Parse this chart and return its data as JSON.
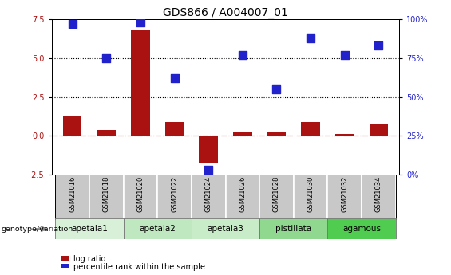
{
  "title": "GDS866 / A004007_01",
  "samples": [
    "GSM21016",
    "GSM21018",
    "GSM21020",
    "GSM21022",
    "GSM21024",
    "GSM21026",
    "GSM21028",
    "GSM21030",
    "GSM21032",
    "GSM21034"
  ],
  "log_ratio": [
    1.3,
    0.4,
    6.8,
    0.9,
    -1.8,
    0.2,
    0.2,
    0.9,
    0.1,
    0.8
  ],
  "percentile_rank": [
    97,
    75,
    98,
    62,
    3,
    77,
    55,
    88,
    77,
    83
  ],
  "groups": [
    {
      "label": "apetala1",
      "color": "#d8f0d8",
      "start": 0,
      "end": 2
    },
    {
      "label": "apetala2",
      "color": "#c0e8c0",
      "start": 2,
      "end": 4
    },
    {
      "label": "apetala3",
      "color": "#c8ecc8",
      "start": 4,
      "end": 6
    },
    {
      "label": "pistillata",
      "color": "#90d890",
      "start": 6,
      "end": 8
    },
    {
      "label": "agamous",
      "color": "#50cc50",
      "start": 8,
      "end": 10
    }
  ],
  "bar_color": "#aa1111",
  "dot_color": "#2222cc",
  "left_ylim": [
    -2.5,
    7.5
  ],
  "right_ylim": [
    0,
    100
  ],
  "left_yticks": [
    -2.5,
    0.0,
    2.5,
    5.0,
    7.5
  ],
  "right_yticks": [
    0,
    25,
    50,
    75,
    100
  ],
  "right_yticklabels": [
    "0%",
    "25%",
    "50%",
    "75%",
    "100%"
  ],
  "hlines": [
    2.5,
    5.0
  ],
  "zero_line": 0.0,
  "bar_width": 0.55,
  "dot_size": 45,
  "legend_bar_label": "log ratio",
  "legend_dot_label": "percentile rank within the sample",
  "genotype_label": "genotype/variation",
  "title_fontsize": 10,
  "tick_fontsize": 7,
  "label_fontsize": 7.5,
  "sample_box_color": "#c8c8c8",
  "sample_box_edge": "#ffffff"
}
